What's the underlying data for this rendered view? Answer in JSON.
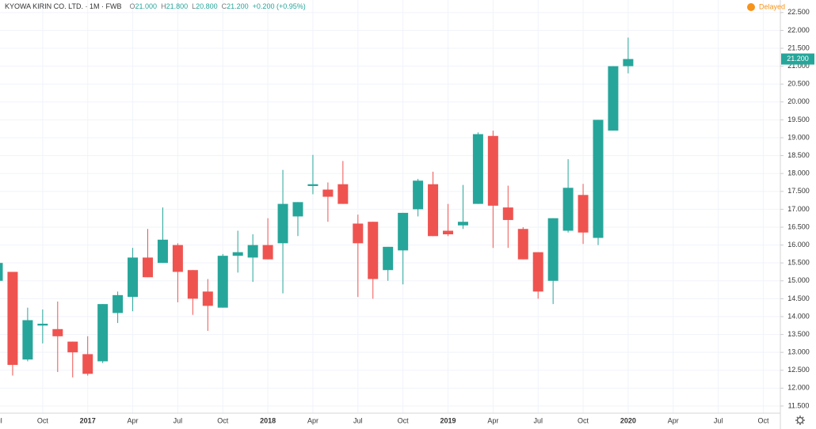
{
  "header": {
    "symbol": "KYOWA KIRIN CO. LTD. · 1M · FWB",
    "ohlc": [
      [
        "O",
        "21.000"
      ],
      [
        "H",
        "21.800"
      ],
      [
        "L",
        "20.800"
      ],
      [
        "C",
        "21.200"
      ]
    ],
    "change": "+0.200 (+0.95%)",
    "status": "Delayed"
  },
  "chart_data": {
    "type": "candlestick",
    "up_color": "#26a69a",
    "down_color": "#ef5350",
    "grid": true,
    "categories": [
      "Jul",
      null,
      null,
      "Oct",
      null,
      null,
      "2017",
      null,
      null,
      "Apr",
      null,
      null,
      "Jul",
      null,
      null,
      "Oct",
      null,
      null,
      "2018",
      null,
      null,
      "Apr",
      null,
      null,
      "Jul",
      null,
      null,
      "Oct",
      null,
      null,
      "2019",
      null,
      null,
      "Apr",
      null,
      null,
      "Jul",
      null,
      null,
      "Oct",
      null,
      null,
      "2020",
      null,
      null,
      "Apr",
      null,
      null,
      "Jul",
      null,
      null,
      "Oct"
    ],
    "open": [
      15.0,
      15.25,
      12.8,
      13.75,
      13.65,
      13.3,
      12.95,
      12.75,
      14.1,
      14.55,
      15.65,
      15.5,
      16.0,
      15.3,
      14.7,
      14.25,
      15.7,
      15.65,
      16.0,
      16.05,
      16.8,
      17.65,
      17.55,
      17.7,
      16.6,
      16.65,
      15.3,
      15.85,
      17.0,
      17.7,
      16.4,
      16.55,
      17.15,
      19.05,
      17.05,
      16.45,
      15.8,
      15.0,
      16.4,
      17.4,
      16.2,
      19.2,
      21.0,
      null,
      null,
      null,
      null,
      null,
      null,
      null,
      null,
      null
    ],
    "high": [
      15.6,
      15.25,
      14.25,
      14.2,
      14.42,
      13.3,
      13.45,
      14.35,
      14.7,
      15.92,
      16.45,
      17.05,
      16.05,
      15.3,
      15.05,
      15.75,
      16.4,
      16.3,
      16.75,
      18.1,
      17.2,
      18.52,
      17.75,
      18.35,
      16.85,
      16.65,
      15.95,
      16.9,
      17.85,
      18.05,
      17.15,
      17.68,
      19.15,
      19.2,
      17.66,
      16.5,
      15.8,
      16.75,
      18.4,
      17.71,
      19.5,
      21.0,
      21.8,
      null,
      null,
      null,
      null,
      null,
      null,
      null,
      null,
      null
    ],
    "low": [
      14.9,
      12.35,
      12.75,
      13.25,
      12.45,
      12.3,
      12.35,
      12.7,
      13.82,
      14.15,
      15.1,
      15.5,
      14.4,
      14.05,
      13.6,
      14.25,
      15.23,
      14.97,
      15.6,
      14.65,
      16.25,
      17.42,
      16.65,
      17.15,
      14.55,
      14.5,
      15.0,
      14.9,
      16.8,
      16.25,
      16.25,
      16.45,
      17.15,
      15.92,
      15.92,
      15.6,
      14.5,
      14.35,
      16.35,
      16.03,
      16.0,
      19.2,
      20.8,
      null,
      null,
      null,
      null,
      null,
      null,
      null,
      null,
      null
    ],
    "close": [
      15.5,
      12.65,
      13.9,
      13.8,
      13.45,
      13.0,
      12.4,
      14.35,
      14.6,
      15.65,
      15.1,
      16.15,
      15.25,
      14.5,
      14.3,
      15.7,
      15.8,
      16.0,
      15.6,
      17.15,
      17.2,
      17.7,
      17.35,
      17.15,
      16.05,
      15.05,
      15.95,
      16.9,
      17.8,
      16.25,
      16.3,
      16.65,
      19.1,
      17.1,
      16.7,
      15.6,
      14.7,
      16.75,
      17.6,
      16.35,
      19.5,
      21.0,
      21.2,
      null,
      null,
      null,
      null,
      null,
      null,
      null,
      null,
      null
    ],
    "last_price": {
      "value": 21.2,
      "label": "21.200"
    },
    "ylim": [
      11.3,
      22.85
    ],
    "yticks": [
      {
        "value": 11.5,
        "label": "11.500"
      },
      {
        "value": 12,
        "label": "12.000"
      },
      {
        "value": 12.5,
        "label": "12.500"
      },
      {
        "value": 13,
        "label": "13.000"
      },
      {
        "value": 13.5,
        "label": "13.500"
      },
      {
        "value": 14,
        "label": "14.000"
      },
      {
        "value": 14.5,
        "label": "14.500"
      },
      {
        "value": 15,
        "label": "15.000"
      },
      {
        "value": 15.5,
        "label": "15.500"
      },
      {
        "value": 16,
        "label": "16.000"
      },
      {
        "value": 16.5,
        "label": "16.500"
      },
      {
        "value": 17,
        "label": "17.000"
      },
      {
        "value": 17.5,
        "label": "17.500"
      },
      {
        "value": 18,
        "label": "18.000"
      },
      {
        "value": 18.5,
        "label": "18.500"
      },
      {
        "value": 19,
        "label": "19.000"
      },
      {
        "value": 19.5,
        "label": "19.500"
      },
      {
        "value": 20,
        "label": "20.000"
      },
      {
        "value": 20.5,
        "label": "20.500"
      },
      {
        "value": 21,
        "label": "21.000"
      },
      {
        "value": 21.5,
        "label": "21.500"
      },
      {
        "value": 22,
        "label": "22.000"
      },
      {
        "value": 22.5,
        "label": "22.500"
      }
    ]
  }
}
